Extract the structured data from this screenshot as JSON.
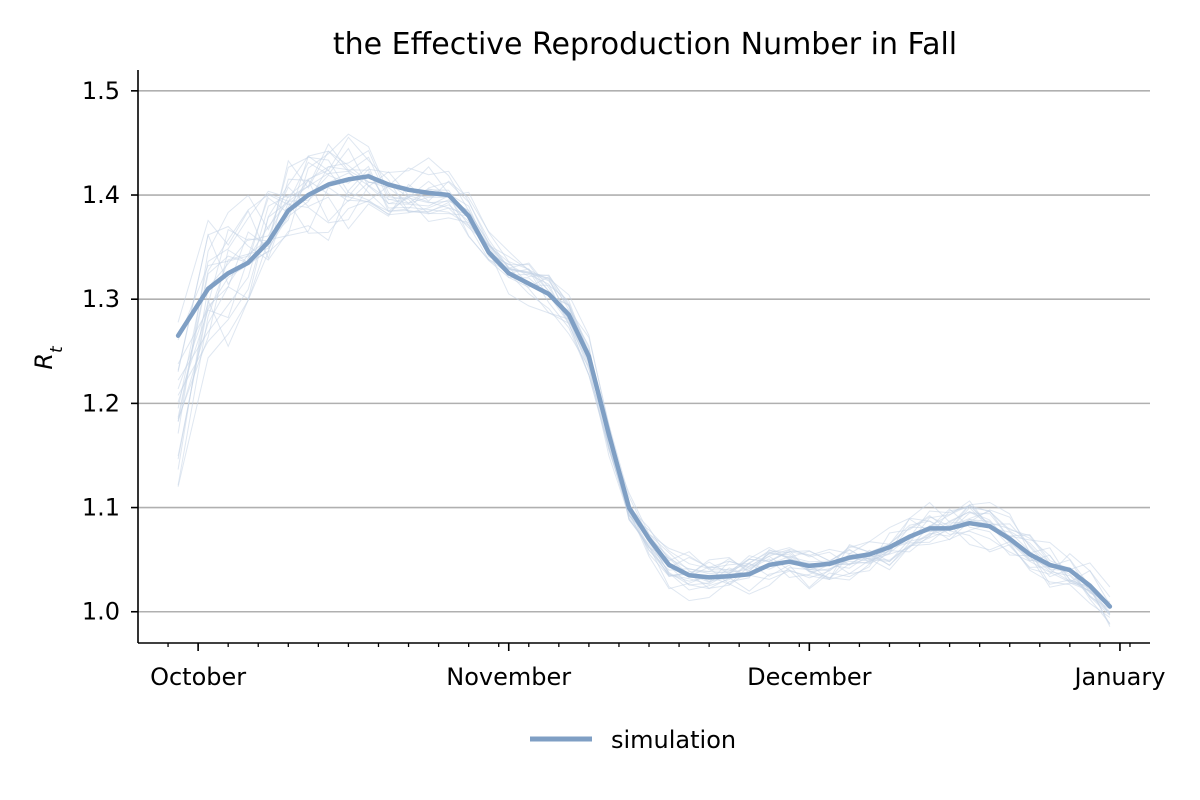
{
  "chart_data": {
    "type": "line",
    "title": "the Effective Reproduction Number in Fall",
    "xlabel": "",
    "ylabel": "R",
    "ylabel_subscript": "t",
    "ylim": [
      0.97,
      1.52
    ],
    "xlim": [
      "2020-09-25",
      "2021-01-04"
    ],
    "x_tick_labels": [
      "October",
      "November",
      "December",
      "January"
    ],
    "x_tick_dates": [
      "2020-10-01",
      "2020-11-01",
      "2020-12-01",
      "2021-01-01"
    ],
    "y_ticks": [
      1.0,
      1.1,
      1.2,
      1.3,
      1.4,
      1.5
    ],
    "y_tick_labels": [
      "1.0",
      "1.1",
      "1.2",
      "1.3",
      "1.4",
      "1.5"
    ],
    "grid": "horizontal",
    "legend": {
      "position": "bottom-center",
      "entries": [
        "simulation"
      ]
    },
    "colors": {
      "main": "#7f9fc4",
      "faint": "#c5d3e6",
      "grid": "#b0b0b0",
      "axis": "#000000"
    },
    "series": [
      {
        "name": "simulation",
        "x": [
          "2020-09-29",
          "2020-10-02",
          "2020-10-04",
          "2020-10-06",
          "2020-10-08",
          "2020-10-10",
          "2020-10-12",
          "2020-10-14",
          "2020-10-16",
          "2020-10-18",
          "2020-10-20",
          "2020-10-22",
          "2020-10-24",
          "2020-10-26",
          "2020-10-28",
          "2020-10-30",
          "2020-11-01",
          "2020-11-03",
          "2020-11-05",
          "2020-11-07",
          "2020-11-09",
          "2020-11-11",
          "2020-11-13",
          "2020-11-15",
          "2020-11-17",
          "2020-11-19",
          "2020-11-21",
          "2020-11-23",
          "2020-11-25",
          "2020-11-27",
          "2020-11-29",
          "2020-12-01",
          "2020-12-03",
          "2020-12-05",
          "2020-12-07",
          "2020-12-09",
          "2020-12-11",
          "2020-12-13",
          "2020-12-15",
          "2020-12-17",
          "2020-12-19",
          "2020-12-21",
          "2020-12-23",
          "2020-12-25",
          "2020-12-27",
          "2020-12-29",
          "2020-12-31"
        ],
        "y": [
          1.265,
          1.31,
          1.325,
          1.335,
          1.355,
          1.385,
          1.4,
          1.41,
          1.415,
          1.418,
          1.41,
          1.405,
          1.402,
          1.4,
          1.38,
          1.345,
          1.325,
          1.315,
          1.305,
          1.285,
          1.245,
          1.17,
          1.1,
          1.07,
          1.045,
          1.035,
          1.033,
          1.034,
          1.036,
          1.045,
          1.048,
          1.044,
          1.046,
          1.052,
          1.055,
          1.062,
          1.072,
          1.08,
          1.08,
          1.085,
          1.082,
          1.07,
          1.055,
          1.045,
          1.04,
          1.025,
          1.005
        ]
      }
    ],
    "faint_series_count": 20
  }
}
